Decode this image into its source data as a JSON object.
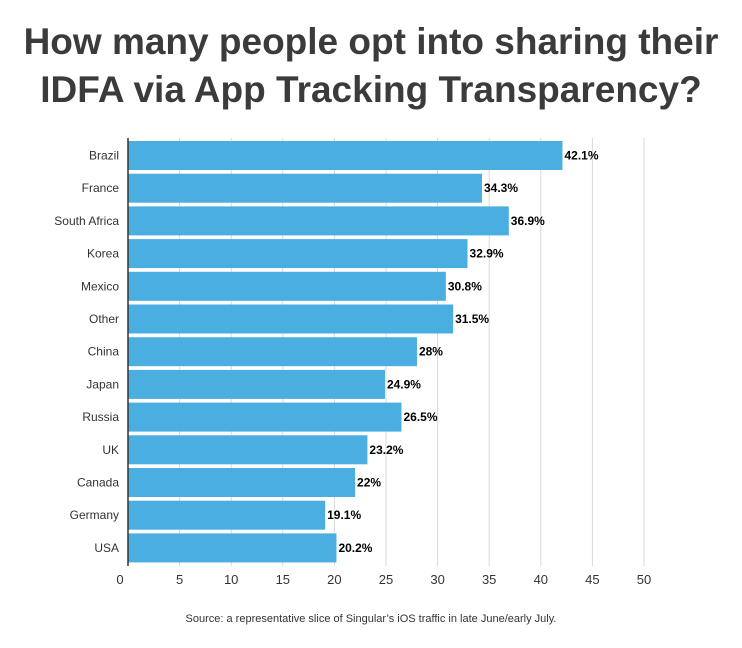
{
  "title_lines": [
    "How many people opt into sharing their",
    "IDFA via App Tracking Transparency?"
  ],
  "source": "Source: a representative slice of Singular’s iOS traffic in late June/early July.",
  "colors": {
    "bar": "#4aaee0",
    "grid": "#d9d9d9",
    "axis": "#333333",
    "title": "#3b3b3b",
    "text": "#000000"
  },
  "chart_data": {
    "type": "bar",
    "orientation": "horizontal",
    "title": "How many people opt into sharing their IDFA via App Tracking Transparency?",
    "xlabel": "",
    "ylabel": "",
    "categories": [
      "Brazil",
      "France",
      "South Africa",
      "Korea",
      "Mexico",
      "Other",
      "China",
      "Japan",
      "Russia",
      "UK",
      "Canada",
      "Germany",
      "USA"
    ],
    "values": [
      42.1,
      34.3,
      36.9,
      32.9,
      30.8,
      31.5,
      28,
      24.9,
      26.5,
      23.2,
      22,
      19.1,
      20.2
    ],
    "value_labels": [
      "42.1%",
      "34.3%",
      "36.9%",
      "32.9%",
      "30.8%",
      "31.5%",
      "28%",
      "24.9%",
      "26.5%",
      "23.2%",
      "22%",
      "19.1%",
      "20.2%"
    ],
    "xlim": [
      0,
      50
    ],
    "xticks": [
      0,
      5,
      10,
      15,
      20,
      25,
      30,
      35,
      40,
      45,
      50
    ],
    "grid": true,
    "legend": "none"
  }
}
